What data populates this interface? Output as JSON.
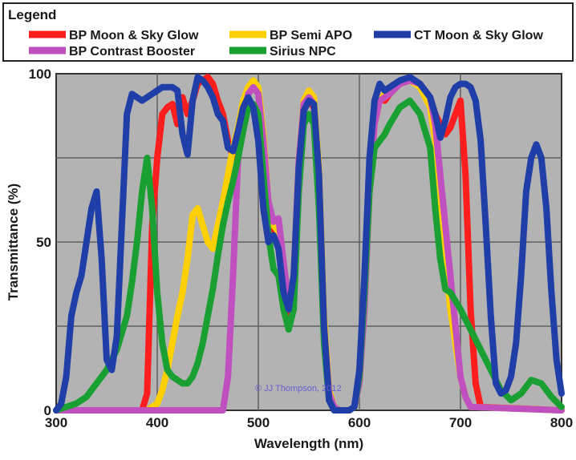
{
  "chart_data": {
    "type": "line",
    "legend": {
      "title": "Legend",
      "placement": "top",
      "entries": [
        "BP Moon & Sky Glow",
        "BP Semi APO",
        "CT Moon & Sky Glow",
        "BP Contrast Booster",
        "Sirius NPC"
      ]
    },
    "xlabel": "Wavelength (nm)",
    "ylabel": "Transmittance (%)",
    "xlim": [
      300,
      800
    ],
    "ylim": [
      0,
      100
    ],
    "xticks": [
      "300",
      "400",
      "500",
      "600",
      "700",
      "800"
    ],
    "yticks": [
      "0",
      "50",
      "100"
    ],
    "grid": true,
    "annotation": "© JJ Thompson, 2012",
    "series": [
      {
        "name": "BP Moon & Sky Glow",
        "color": "#ff1e1e",
        "x": [
          300,
          385,
          390,
          395,
          400,
          405,
          410,
          415,
          420,
          425,
          430,
          435,
          440,
          445,
          450,
          455,
          460,
          465,
          470,
          475,
          480,
          485,
          490,
          495,
          500,
          505,
          510,
          515,
          520,
          525,
          530,
          535,
          540,
          545,
          550,
          555,
          560,
          565,
          570,
          575,
          580,
          585,
          590,
          595,
          600,
          605,
          610,
          615,
          620,
          625,
          630,
          640,
          650,
          660,
          670,
          675,
          680,
          685,
          690,
          695,
          700,
          705,
          710,
          715,
          720,
          800
        ],
        "y": [
          0,
          0,
          5,
          55,
          75,
          88,
          90,
          91,
          85,
          93,
          88,
          92,
          97,
          98,
          99,
          97,
          92,
          88,
          80,
          75,
          78,
          86,
          94,
          97,
          95,
          80,
          60,
          52,
          50,
          40,
          28,
          35,
          72,
          90,
          92,
          90,
          70,
          25,
          5,
          1,
          0,
          0,
          0,
          1,
          10,
          35,
          70,
          88,
          93,
          92,
          94,
          97,
          98,
          97,
          93,
          88,
          85,
          82,
          84,
          88,
          92,
          70,
          30,
          8,
          1,
          0
        ]
      },
      {
        "name": "BP Semi APO",
        "color": "#ffd000",
        "x": [
          300,
          380,
          390,
          400,
          405,
          410,
          415,
          420,
          425,
          430,
          435,
          440,
          445,
          450,
          455,
          460,
          465,
          470,
          475,
          480,
          485,
          490,
          495,
          500,
          505,
          510,
          515,
          520,
          525,
          530,
          535,
          540,
          545,
          550,
          555,
          560,
          565,
          570,
          575,
          580,
          590,
          595,
          600,
          605,
          610,
          615,
          620,
          625,
          630,
          640,
          650,
          660,
          670,
          675,
          680,
          685,
          690,
          695,
          700,
          705,
          710,
          800
        ],
        "y": [
          0,
          0,
          0,
          2,
          6,
          12,
          20,
          28,
          35,
          45,
          58,
          60,
          55,
          50,
          48,
          55,
          62,
          70,
          78,
          84,
          92,
          96,
          98,
          96,
          82,
          62,
          55,
          53,
          42,
          30,
          40,
          74,
          92,
          95,
          93,
          72,
          28,
          6,
          1,
          0,
          0,
          1,
          8,
          30,
          65,
          85,
          92,
          94,
          95,
          97,
          98,
          96,
          90,
          80,
          65,
          45,
          30,
          20,
          10,
          4,
          1,
          0
        ]
      },
      {
        "name": "BP Contrast Booster",
        "color": "#c050c0",
        "x": [
          300,
          465,
          470,
          475,
          480,
          485,
          490,
          495,
          500,
          505,
          510,
          515,
          520,
          525,
          530,
          535,
          540,
          545,
          550,
          555,
          560,
          565,
          570,
          575,
          580,
          590,
          595,
          600,
          605,
          610,
          615,
          620,
          625,
          630,
          640,
          650,
          660,
          670,
          675,
          680,
          685,
          690,
          695,
          700,
          705,
          710,
          800
        ],
        "y": [
          0,
          0,
          10,
          40,
          75,
          88,
          94,
          96,
          94,
          80,
          62,
          56,
          57,
          44,
          32,
          40,
          74,
          91,
          93,
          91,
          70,
          25,
          5,
          1,
          0,
          0,
          1,
          8,
          30,
          65,
          85,
          92,
          93,
          94,
          97,
          98,
          97,
          93,
          85,
          70,
          55,
          40,
          25,
          10,
          4,
          1,
          0
        ]
      },
      {
        "name": "Sirius NPC",
        "color": "#1aa032",
        "x": [
          300,
          310,
          320,
          330,
          340,
          350,
          360,
          370,
          375,
          380,
          385,
          390,
          395,
          400,
          405,
          410,
          415,
          420,
          425,
          430,
          435,
          440,
          445,
          450,
          455,
          460,
          465,
          470,
          475,
          480,
          485,
          490,
          495,
          500,
          505,
          510,
          515,
          520,
          525,
          530,
          535,
          540,
          545,
          550,
          555,
          560,
          565,
          570,
          575,
          580,
          590,
          595,
          600,
          605,
          610,
          615,
          620,
          625,
          630,
          640,
          650,
          660,
          670,
          675,
          680,
          685,
          690,
          700,
          710,
          720,
          730,
          740,
          750,
          760,
          770,
          780,
          790,
          800
        ],
        "y": [
          0,
          1,
          2,
          4,
          8,
          12,
          18,
          28,
          38,
          50,
          65,
          75,
          60,
          35,
          20,
          12,
          10,
          9,
          8,
          8,
          10,
          14,
          20,
          28,
          36,
          46,
          55,
          62,
          68,
          75,
          83,
          90,
          91,
          88,
          70,
          52,
          42,
          40,
          30,
          24,
          30,
          65,
          85,
          88,
          85,
          60,
          20,
          3,
          0,
          0,
          0,
          1,
          10,
          35,
          65,
          78,
          80,
          82,
          85,
          90,
          92,
          88,
          78,
          60,
          45,
          36,
          35,
          30,
          24,
          18,
          12,
          6,
          3,
          5,
          9,
          8,
          4,
          1
        ]
      },
      {
        "name": "CT Moon & Sky Glow",
        "color": "#1f3ea8",
        "x": [
          300,
          305,
          310,
          315,
          320,
          325,
          330,
          335,
          340,
          345,
          350,
          355,
          360,
          365,
          370,
          375,
          380,
          385,
          390,
          395,
          400,
          405,
          410,
          415,
          420,
          425,
          430,
          435,
          440,
          445,
          450,
          455,
          460,
          465,
          470,
          475,
          480,
          485,
          490,
          495,
          500,
          505,
          510,
          515,
          520,
          525,
          530,
          535,
          540,
          545,
          550,
          555,
          560,
          565,
          570,
          575,
          580,
          585,
          590,
          595,
          600,
          605,
          610,
          615,
          620,
          625,
          630,
          640,
          650,
          660,
          670,
          675,
          680,
          685,
          690,
          695,
          700,
          705,
          710,
          715,
          720,
          725,
          730,
          735,
          740,
          745,
          750,
          755,
          760,
          765,
          770,
          775,
          780,
          785,
          790,
          795,
          800
        ],
        "y": [
          0,
          2,
          10,
          28,
          35,
          40,
          50,
          60,
          65,
          45,
          15,
          12,
          22,
          55,
          88,
          94,
          93,
          92,
          93,
          94,
          95,
          96,
          96,
          96,
          95,
          82,
          76,
          92,
          99,
          98,
          96,
          93,
          88,
          86,
          78,
          77,
          83,
          90,
          93,
          90,
          80,
          60,
          50,
          52,
          48,
          35,
          30,
          40,
          72,
          89,
          92,
          91,
          70,
          25,
          3,
          0,
          0,
          0,
          0,
          1,
          12,
          40,
          75,
          92,
          97,
          95,
          96,
          98,
          99,
          97,
          93,
          88,
          81,
          86,
          93,
          96,
          97,
          97,
          96,
          92,
          80,
          55,
          28,
          8,
          5,
          6,
          10,
          20,
          40,
          65,
          75,
          79,
          75,
          60,
          35,
          15,
          5
        ]
      }
    ]
  }
}
